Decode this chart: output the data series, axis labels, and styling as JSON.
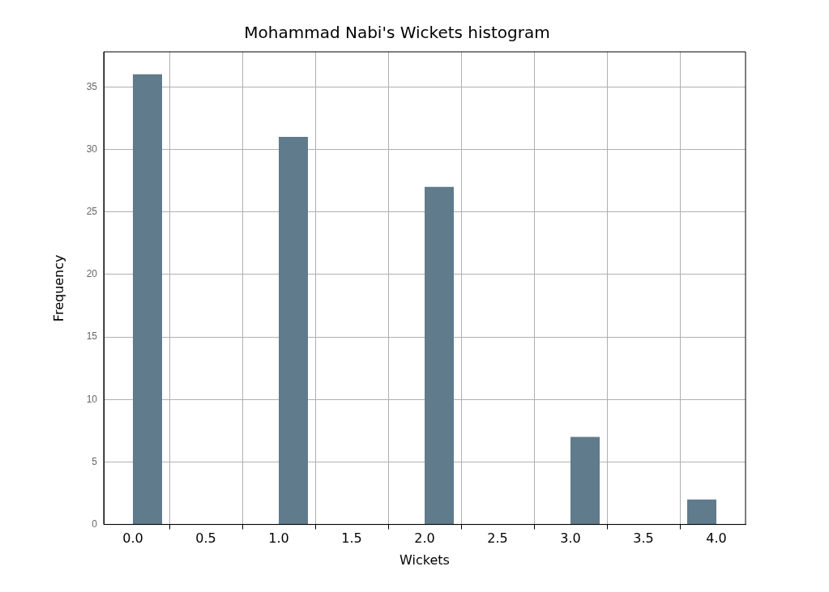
{
  "chart_data": {
    "type": "histogram",
    "title": "Mohammad Nabi's Wickets histogram",
    "xlabel": "Wickets",
    "ylabel": "Frequency",
    "bins": [
      0,
      0.2,
      0.4,
      0.6,
      0.8,
      1.0,
      1.2,
      1.4,
      1.6,
      1.8,
      2.0,
      2.2,
      2.4,
      2.6,
      2.8,
      3.0,
      3.2,
      3.4,
      3.6,
      3.8,
      4.0
    ],
    "values": [
      36,
      0,
      0,
      0,
      0,
      31,
      0,
      0,
      0,
      0,
      27,
      0,
      0,
      0,
      0,
      7,
      0,
      0,
      0,
      2
    ],
    "color": "#607b8b",
    "xlim": [
      -0.2,
      4.2
    ],
    "xticks": [
      {
        "value": 0,
        "label": "0.0"
      },
      {
        "value": 0.5,
        "label": "0.5"
      },
      {
        "value": 1,
        "label": "1.0"
      },
      {
        "value": 1.5,
        "label": "1.5"
      },
      {
        "value": 2,
        "label": "2.0"
      },
      {
        "value": 2.5,
        "label": "2.5"
      },
      {
        "value": 3,
        "label": "3.0"
      },
      {
        "value": 3.5,
        "label": "3.5"
      },
      {
        "value": 4,
        "label": "4.0"
      }
    ],
    "ylim": [
      0,
      37.8
    ],
    "yticks": [
      0,
      5,
      10,
      15,
      20,
      25,
      30,
      35
    ],
    "grid": true,
    "legend": false
  }
}
